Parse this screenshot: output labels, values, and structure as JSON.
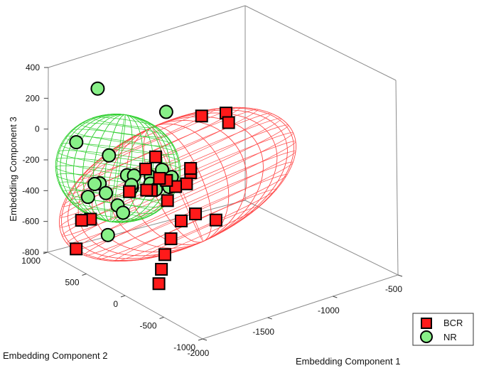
{
  "chart_data": {
    "type": "scatter",
    "series": [
      {
        "name": "BCR",
        "color": "#ff1a1a",
        "marker": "square",
        "values": [
          [
            -1200,
            50,
            150
          ],
          [
            -1150,
            100,
            60
          ],
          [
            -1250,
            280,
            80
          ],
          [
            -1380,
            200,
            -230
          ],
          [
            -1430,
            170,
            -280
          ],
          [
            -1520,
            160,
            -270
          ],
          [
            -1250,
            420,
            -300
          ],
          [
            -1480,
            330,
            -420
          ],
          [
            -1470,
            360,
            -300
          ],
          [
            -1500,
            580,
            -280
          ],
          [
            -1550,
            420,
            -360
          ],
          [
            -1600,
            620,
            -410
          ],
          [
            -1450,
            650,
            -450
          ],
          [
            -1280,
            40,
            -520
          ],
          [
            -1400,
            620,
            -240
          ],
          [
            -1700,
            -400,
            -240
          ],
          [
            -1500,
            250,
            -640
          ],
          [
            -1600,
            160,
            -690
          ],
          [
            -1650,
            120,
            -760
          ],
          [
            -1800,
            -100,
            -750
          ],
          [
            -1880,
            650,
            -520
          ],
          [
            -1800,
            900,
            -620
          ],
          [
            -1900,
            800,
            -750
          ],
          [
            -1620,
            200,
            -200
          ],
          [
            -1750,
            -300,
            -300
          ]
        ]
      },
      {
        "name": "NR",
        "color": "#88f088",
        "marker": "circle",
        "values": [
          [
            -1950,
            720,
            -20
          ],
          [
            -1650,
            950,
            180
          ],
          [
            -1600,
            150,
            240
          ],
          [
            -1900,
            500,
            -240
          ],
          [
            -1900,
            420,
            -280
          ],
          [
            -1900,
            650,
            -370
          ],
          [
            -1850,
            650,
            -300
          ],
          [
            -1800,
            550,
            -100
          ],
          [
            -1750,
            400,
            -200
          ],
          [
            -1720,
            360,
            -200
          ],
          [
            -1650,
            260,
            -200
          ],
          [
            -1600,
            200,
            -150
          ],
          [
            -1550,
            160,
            -200
          ],
          [
            -1700,
            420,
            -300
          ],
          [
            -1750,
            520,
            -430
          ],
          [
            -1680,
            460,
            -300
          ],
          [
            -1630,
            300,
            -260
          ],
          [
            -1600,
            280,
            -300
          ],
          [
            -1720,
            500,
            -480
          ],
          [
            -1800,
            560,
            -620
          ],
          [
            -1580,
            140,
            -250
          ]
        ]
      }
    ],
    "xlabel": "Embedding Component 1",
    "ylabel": "Embedding Component 2",
    "zlabel": "Embedding Component 3",
    "xlim": [
      -2000,
      -500
    ],
    "ylim": [
      -1000,
      1000
    ],
    "zlim": [
      -800,
      400
    ],
    "xticks": [
      "-2000",
      "-1500",
      "-1000",
      "-500"
    ],
    "yticks": [
      "-1000",
      "-500",
      "0",
      "500",
      "1000"
    ],
    "zticks": [
      "-800",
      "-600",
      "-400",
      "-200",
      "0",
      "200",
      "400"
    ],
    "grid": false,
    "legend": "bottom-right",
    "ellipsoids": [
      {
        "name": "BCR",
        "color": "#ff4a4a",
        "center": [
          -1450,
          250,
          -300
        ]
      },
      {
        "name": "NR",
        "color": "#2fd02f",
        "center": [
          -1760,
          500,
          -180
        ]
      }
    ]
  }
}
